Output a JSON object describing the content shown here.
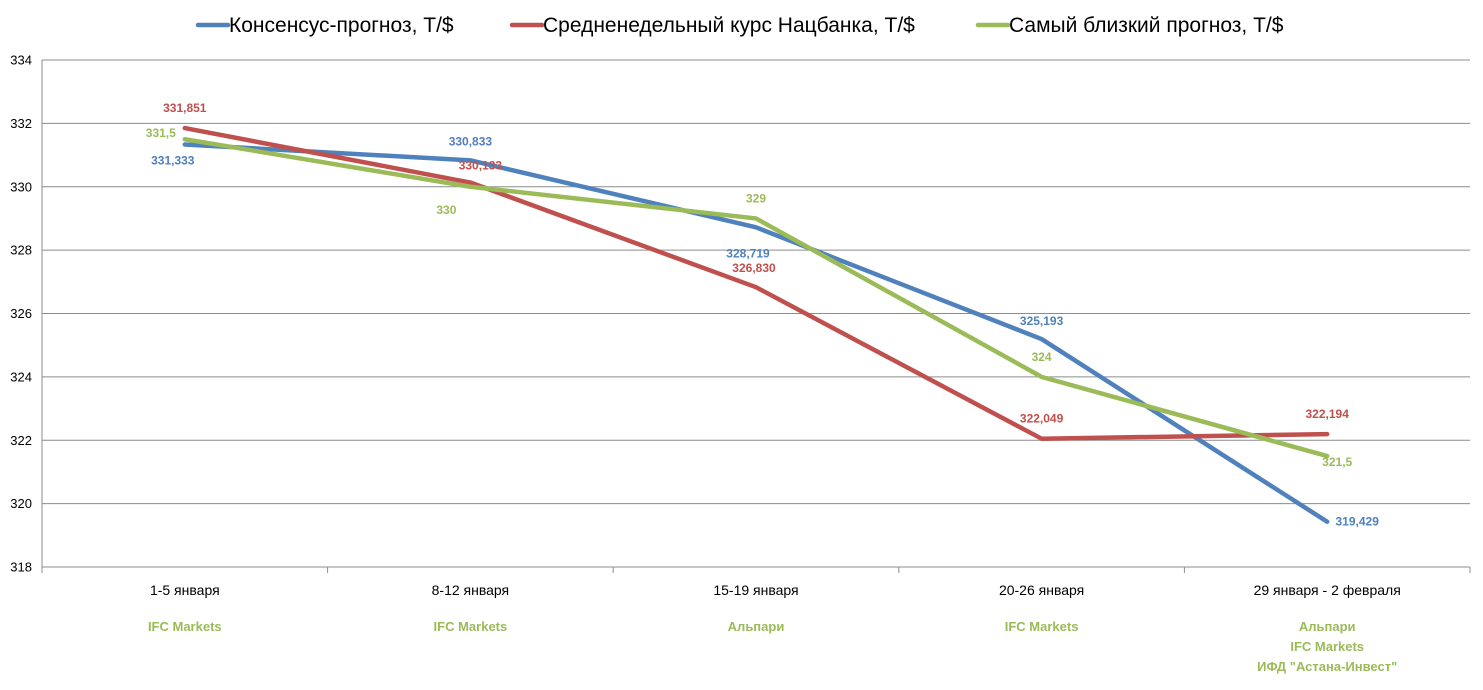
{
  "chart_data": {
    "type": "line",
    "categories": [
      "1-5 января",
      "8-12 января",
      "15-19 января",
      "20-26 января",
      "29 января - 2 февраля"
    ],
    "category_sources": [
      [
        "IFC Markets"
      ],
      [
        "IFC Markets"
      ],
      [
        "Альпари"
      ],
      [
        "IFC Markets"
      ],
      [
        "Альпари",
        "IFC Markets",
        "ИФД \"Астана-Инвест\""
      ]
    ],
    "series": [
      {
        "name": "Консенсус-прогноз,  Т/$",
        "color": "#4F81BD",
        "values": [
          331.333,
          330.833,
          328.719,
          325.193,
          319.429
        ],
        "labels": [
          "331,333",
          "330,833",
          "328,719",
          "325,193",
          "319,429"
        ]
      },
      {
        "name": "Средненедельный  курс Нацбанка, Т/$",
        "color": "#C0504D",
        "values": [
          331.851,
          330.133,
          326.83,
          322.049,
          322.194
        ],
        "labels": [
          "331,851",
          "330,133",
          "326,830",
          "322,049",
          "322,194"
        ]
      },
      {
        "name": "Самый близкий прогноз, Т/$",
        "color": "#9BBB59",
        "values": [
          331.5,
          330,
          329,
          324,
          321.5
        ],
        "labels": [
          "331,5",
          "330",
          "329",
          "324",
          "321,5"
        ]
      }
    ],
    "ylim": [
      318,
      334
    ],
    "yticks": [
      "318",
      "320",
      "322",
      "324",
      "326",
      "328",
      "330",
      "332",
      "334"
    ],
    "grid": true,
    "legend": "top",
    "source_label_color": "#9BBB59"
  }
}
